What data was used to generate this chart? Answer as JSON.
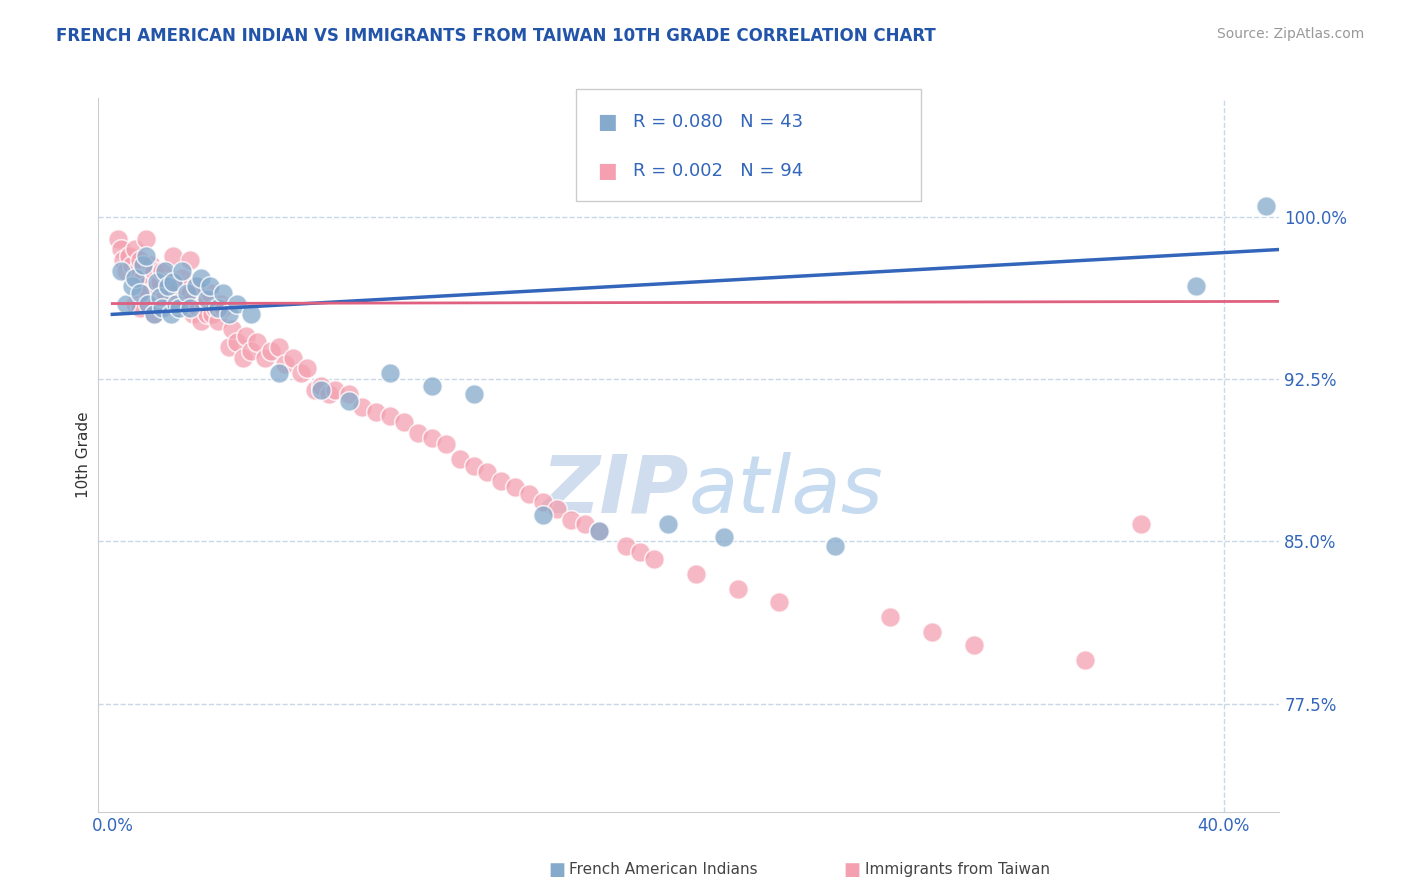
{
  "title": "FRENCH AMERICAN INDIAN VS IMMIGRANTS FROM TAIWAN 10TH GRADE CORRELATION CHART",
  "source": "Source: ZipAtlas.com",
  "ylabel": "10th Grade",
  "x_tick_labels": [
    "0.0%",
    "",
    "",
    "",
    "40.0%"
  ],
  "x_tick_values": [
    0.0,
    0.1,
    0.2,
    0.3,
    0.4
  ],
  "y_tick_labels": [
    "77.5%",
    "85.0%",
    "92.5%",
    "100.0%"
  ],
  "y_tick_values": [
    0.775,
    0.85,
    0.925,
    1.0
  ],
  "xlim": [
    -0.005,
    0.42
  ],
  "ylim": [
    0.725,
    1.055
  ],
  "legend_r1": "R = 0.080",
  "legend_n1": "N = 43",
  "legend_r2": "R = 0.002",
  "legend_n2": "N = 94",
  "legend_label1": "French American Indians",
  "legend_label2": "Immigrants from Taiwan",
  "blue_color": "#85AACC",
  "pink_color": "#F4A0B0",
  "blue_line_color": "#3366BB",
  "pink_line_color": "#E06080",
  "watermark_zip": "ZIP",
  "watermark_atlas": "atlas",
  "title_color": "#2255AA",
  "tick_label_color": "#3366BB",
  "blue_scatter_x": [
    0.003,
    0.005,
    0.007,
    0.008,
    0.01,
    0.011,
    0.012,
    0.013,
    0.015,
    0.016,
    0.017,
    0.018,
    0.019,
    0.02,
    0.021,
    0.022,
    0.023,
    0.024,
    0.025,
    0.027,
    0.028,
    0.03,
    0.032,
    0.034,
    0.035,
    0.038,
    0.04,
    0.042,
    0.045,
    0.05,
    0.06,
    0.075,
    0.085,
    0.1,
    0.115,
    0.13,
    0.155,
    0.175,
    0.2,
    0.22,
    0.26,
    0.39,
    0.415
  ],
  "blue_scatter_y": [
    0.975,
    0.96,
    0.968,
    0.972,
    0.965,
    0.978,
    0.982,
    0.96,
    0.955,
    0.97,
    0.963,
    0.958,
    0.975,
    0.968,
    0.955,
    0.97,
    0.96,
    0.958,
    0.975,
    0.965,
    0.958,
    0.968,
    0.972,
    0.962,
    0.968,
    0.958,
    0.965,
    0.955,
    0.96,
    0.955,
    0.928,
    0.92,
    0.915,
    0.928,
    0.922,
    0.918,
    0.862,
    0.855,
    0.858,
    0.852,
    0.848,
    0.968,
    1.005
  ],
  "pink_scatter_x": [
    0.002,
    0.003,
    0.004,
    0.005,
    0.006,
    0.007,
    0.008,
    0.008,
    0.009,
    0.01,
    0.01,
    0.011,
    0.012,
    0.012,
    0.013,
    0.014,
    0.015,
    0.015,
    0.016,
    0.017,
    0.018,
    0.018,
    0.019,
    0.02,
    0.021,
    0.022,
    0.022,
    0.023,
    0.024,
    0.025,
    0.026,
    0.027,
    0.028,
    0.028,
    0.029,
    0.03,
    0.031,
    0.032,
    0.033,
    0.034,
    0.035,
    0.036,
    0.037,
    0.038,
    0.039,
    0.04,
    0.042,
    0.043,
    0.045,
    0.047,
    0.048,
    0.05,
    0.052,
    0.055,
    0.057,
    0.06,
    0.062,
    0.065,
    0.068,
    0.07,
    0.073,
    0.075,
    0.078,
    0.08,
    0.085,
    0.09,
    0.095,
    0.1,
    0.105,
    0.11,
    0.115,
    0.12,
    0.125,
    0.13,
    0.135,
    0.14,
    0.145,
    0.15,
    0.155,
    0.16,
    0.165,
    0.17,
    0.175,
    0.185,
    0.19,
    0.195,
    0.21,
    0.225,
    0.24,
    0.28,
    0.295,
    0.31,
    0.35,
    0.37
  ],
  "pink_scatter_y": [
    0.99,
    0.985,
    0.98,
    0.975,
    0.982,
    0.978,
    0.985,
    0.96,
    0.975,
    0.98,
    0.958,
    0.972,
    0.968,
    0.99,
    0.965,
    0.978,
    0.975,
    0.955,
    0.968,
    0.97,
    0.96,
    0.975,
    0.965,
    0.97,
    0.96,
    0.965,
    0.982,
    0.958,
    0.968,
    0.972,
    0.958,
    0.96,
    0.965,
    0.98,
    0.955,
    0.968,
    0.958,
    0.952,
    0.96,
    0.955,
    0.965,
    0.955,
    0.958,
    0.952,
    0.96,
    0.958,
    0.94,
    0.948,
    0.942,
    0.935,
    0.945,
    0.938,
    0.942,
    0.935,
    0.938,
    0.94,
    0.932,
    0.935,
    0.928,
    0.93,
    0.92,
    0.922,
    0.918,
    0.92,
    0.918,
    0.912,
    0.91,
    0.908,
    0.905,
    0.9,
    0.898,
    0.895,
    0.888,
    0.885,
    0.882,
    0.878,
    0.875,
    0.872,
    0.868,
    0.865,
    0.86,
    0.858,
    0.855,
    0.848,
    0.845,
    0.842,
    0.835,
    0.828,
    0.822,
    0.815,
    0.808,
    0.802,
    0.795,
    0.858
  ],
  "blue_trendline_x": [
    0.0,
    0.42
  ],
  "blue_trendline_y": [
    0.955,
    0.985
  ],
  "pink_trendline_x": [
    0.0,
    0.42
  ],
  "pink_trendline_y": [
    0.96,
    0.961
  ],
  "pink_trendline_extends_to": 0.42,
  "grid_color": "#C8D8E8",
  "background_color": "#FFFFFF"
}
